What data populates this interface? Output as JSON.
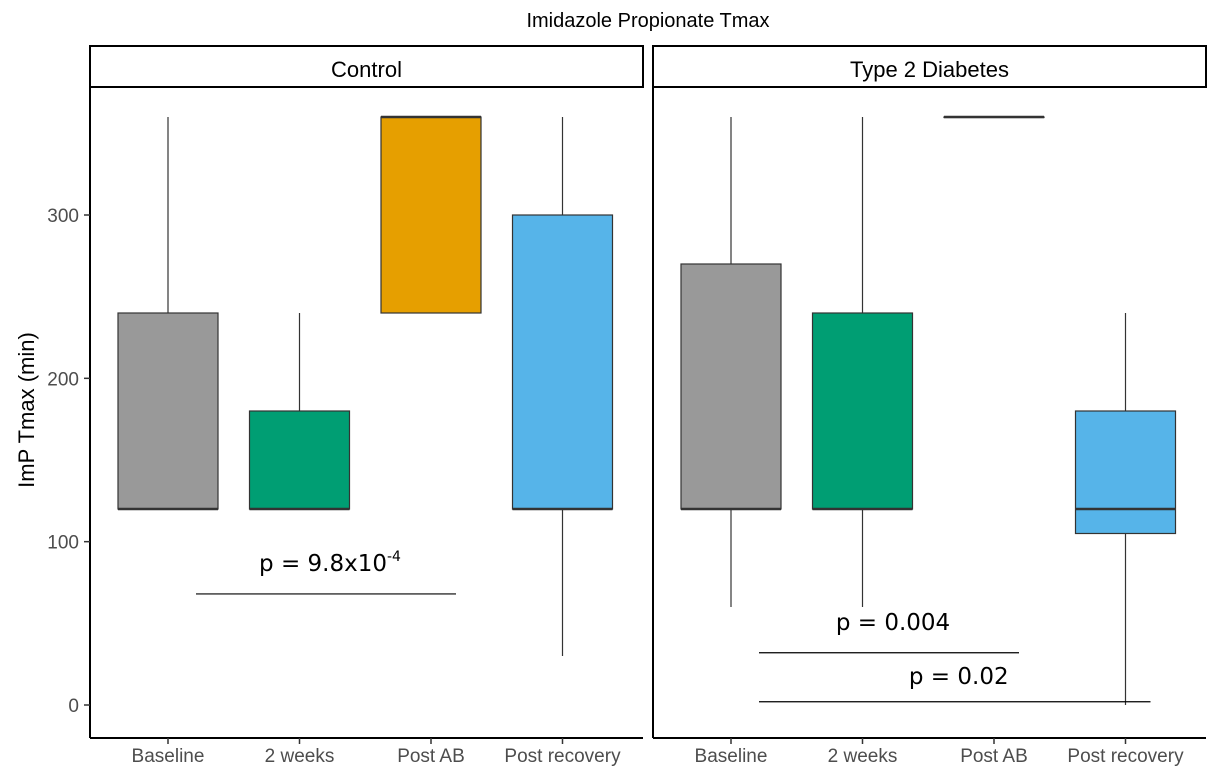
{
  "chart_data": {
    "type": "box",
    "title": "Imidazole Propionate Tmax",
    "ylabel": "ImP Tmax (min)",
    "xlabel": "",
    "ylim": [
      -20,
      380
    ],
    "yticks": [
      0,
      100,
      200,
      300
    ],
    "grid": false,
    "categories": [
      "Baseline",
      "2 weeks",
      "Post AB",
      "Post recovery"
    ],
    "colors": [
      "#999999",
      "#009E73",
      "#E69F00",
      "#56B4E9"
    ],
    "panels": [
      {
        "name": "Control",
        "boxes": [
          {
            "category": "Baseline",
            "min": 120,
            "q1": 120,
            "median": 120,
            "q3": 240,
            "max": 360
          },
          {
            "category": "2 weeks",
            "min": 120,
            "q1": 120,
            "median": 120,
            "q3": 180,
            "max": 240
          },
          {
            "category": "Post AB",
            "min": 240,
            "q1": 240,
            "median": 360,
            "q3": 360,
            "max": 360
          },
          {
            "category": "Post recovery",
            "min": 30,
            "q1": 120,
            "median": 120,
            "q3": 300,
            "max": 360
          }
        ],
        "annotations": [
          {
            "text": "p = 9.8x10",
            "sup": "-4",
            "from": "Baseline",
            "to": "Post AB",
            "y": 68,
            "label_y": 82
          }
        ]
      },
      {
        "name": "Type 2 Diabetes",
        "boxes": [
          {
            "category": "Baseline",
            "min": 60,
            "q1": 120,
            "median": 120,
            "q3": 270,
            "max": 360
          },
          {
            "category": "2 weeks",
            "min": 60,
            "q1": 120,
            "median": 120,
            "q3": 240,
            "max": 360
          },
          {
            "category": "Post AB",
            "min": 360,
            "q1": 360,
            "median": 360,
            "q3": 360,
            "max": 360
          },
          {
            "category": "Post recovery",
            "min": 0,
            "q1": 105,
            "median": 120,
            "q3": 180,
            "max": 240
          }
        ],
        "annotations": [
          {
            "text": "p = 0.004",
            "sup": "",
            "from": "Baseline",
            "to": "Post AB",
            "y": 32,
            "label_y": 46
          },
          {
            "text": "p = 0.02",
            "sup": "",
            "from": "Baseline",
            "to": "Post recovery",
            "y": 2,
            "label_y": 13
          }
        ]
      }
    ]
  }
}
